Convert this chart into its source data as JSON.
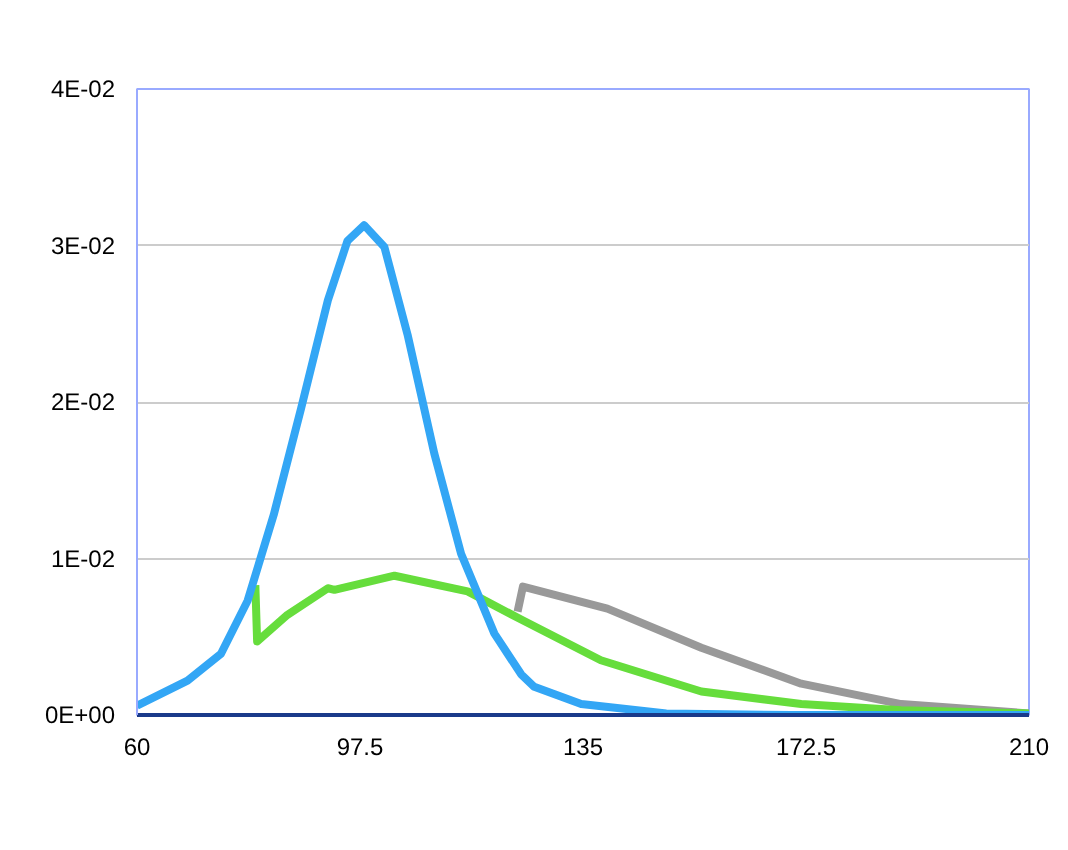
{
  "chart_data": {
    "type": "line",
    "xlim": [
      60,
      210
    ],
    "ylim": [
      0,
      0.04
    ],
    "xticks": [
      60,
      97.5,
      135,
      172.5,
      210
    ],
    "yticks": [
      {
        "value": 0,
        "label": "0E+00"
      },
      {
        "value": 0.01,
        "label": "1E-02"
      },
      {
        "value": 0.02,
        "label": "2E-02"
      },
      {
        "value": 0.03,
        "label": "3E-02"
      },
      {
        "value": 0.04,
        "label": "4E-02"
      }
    ],
    "grid": "y",
    "marker": "none",
    "line_style": "solid",
    "series": [
      {
        "color": "#999999",
        "x": [
          124.0,
          124.9,
          139.1,
          154.9,
          171.7,
          188.5,
          210
        ],
        "values": [
          0.0066,
          0.0082,
          0.0068,
          0.0043,
          0.002,
          0.0007,
          0.0001
        ]
      },
      {
        "color": "#66dd3c",
        "x": [
          79.9,
          80.2,
          85.3,
          92.1,
          93.2,
          103.3,
          115.6,
          124.6,
          138,
          154.9,
          171.7,
          188.5,
          210
        ],
        "values": [
          0.0083,
          0.0047,
          0.0064,
          0.0081,
          0.008,
          0.0089,
          0.0079,
          0.0061,
          0.0035,
          0.0015,
          0.0007,
          0.0003,
          0.0001
        ]
      },
      {
        "color": "#33a6f5",
        "x": [
          60,
          68.5,
          74.1,
          78.6,
          83.0,
          87.6,
          92.1,
          95.4,
          98.2,
          101.6,
          105.5,
          110.0,
          114.5,
          120.1,
          124.6,
          126.8,
          134.7,
          149,
          170,
          210
        ],
        "values": [
          0.0006,
          0.0022,
          0.0039,
          0.0073,
          0.0128,
          0.0196,
          0.0265,
          0.0303,
          0.0313,
          0.0299,
          0.0243,
          0.0167,
          0.0103,
          0.0052,
          0.0026,
          0.0018,
          0.0007,
          0.0001,
          0,
          0
        ]
      }
    ]
  }
}
